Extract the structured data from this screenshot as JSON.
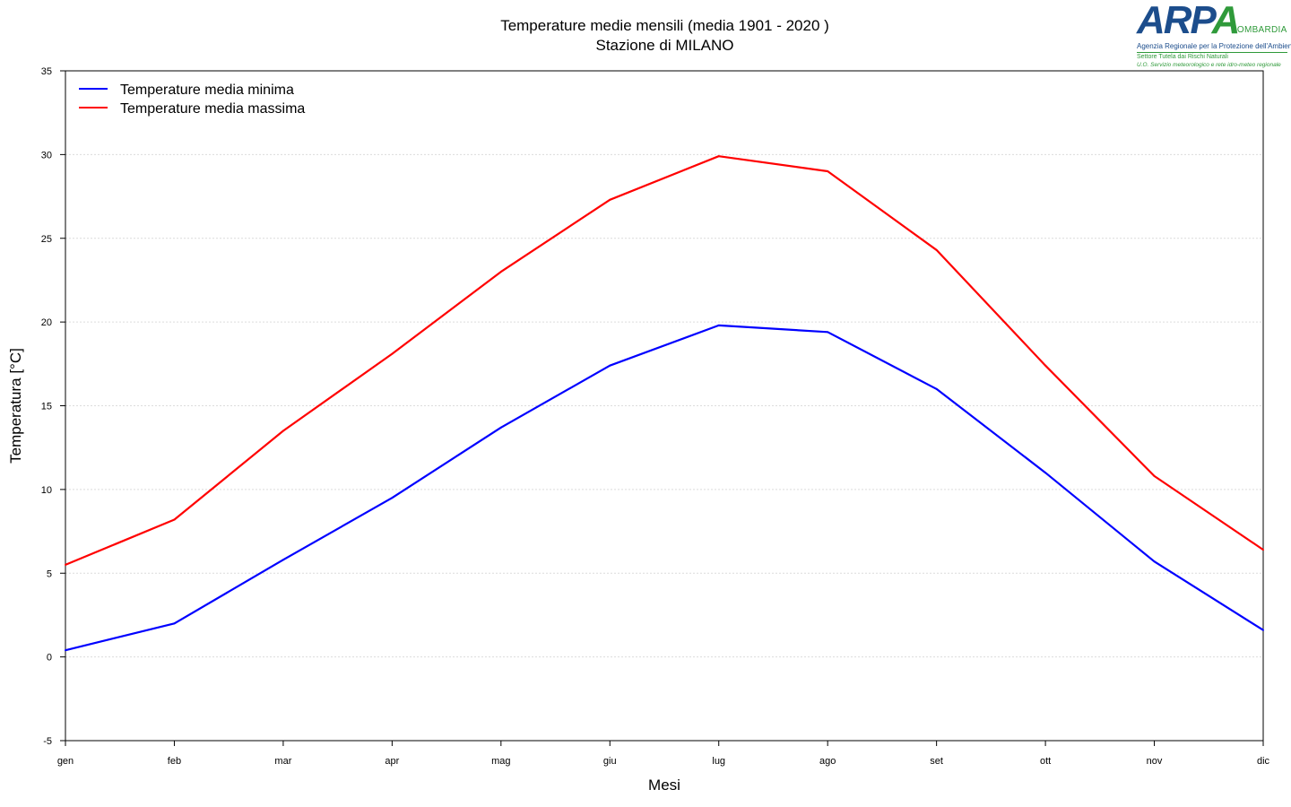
{
  "chart_data": {
    "type": "line",
    "title": "Temperature medie mensili (media 1901 - 2020 )",
    "subtitle": "Stazione di MILANO",
    "xlabel": "Mesi",
    "ylabel": "Temperatura [°C]",
    "categories": [
      "gen",
      "feb",
      "mar",
      "apr",
      "mag",
      "giu",
      "lug",
      "ago",
      "set",
      "ott",
      "nov",
      "dic"
    ],
    "ylim": [
      -5,
      35
    ],
    "yticks": [
      -5,
      0,
      5,
      10,
      15,
      20,
      25,
      30,
      35
    ],
    "grid": true,
    "legend_position": "top-left",
    "series": [
      {
        "name": "Temperature media minima",
        "color": "#0000ff",
        "values": [
          0.4,
          2.0,
          5.8,
          9.5,
          13.7,
          17.4,
          19.8,
          19.4,
          16.0,
          11.0,
          5.7,
          1.6
        ]
      },
      {
        "name": "Temperature media massima",
        "color": "#ff0000",
        "values": [
          5.5,
          8.2,
          13.5,
          18.1,
          23.0,
          27.3,
          29.9,
          29.0,
          24.3,
          17.4,
          10.8,
          6.4
        ]
      }
    ]
  },
  "logo": {
    "word_part1": "ARP",
    "word_part2": "A",
    "region": "LOMBARDIA",
    "line1": "Agenzia Regionale per la Protezione dell'Ambiente",
    "line2": "Settore Tutela dai Rischi Naturali",
    "line3": "U.O. Servizio meteorologico e rete idro-meteo regionale"
  }
}
